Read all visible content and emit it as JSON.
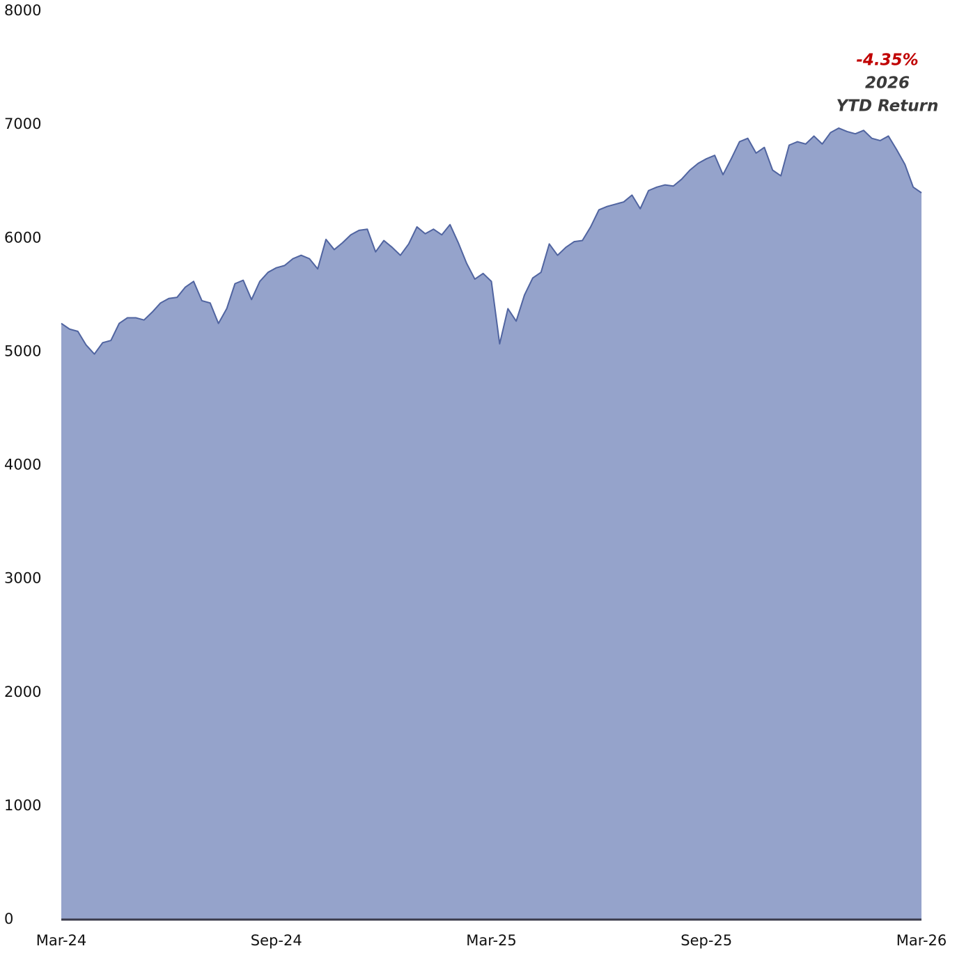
{
  "chart_data": {
    "type": "area",
    "categories": [
      "Mar-24",
      null,
      null,
      null,
      null,
      null,
      null,
      null,
      null,
      null,
      null,
      null,
      null,
      null,
      null,
      null,
      null,
      null,
      null,
      null,
      null,
      null,
      null,
      null,
      null,
      null,
      "Sep-24",
      null,
      null,
      null,
      null,
      null,
      null,
      null,
      null,
      null,
      null,
      null,
      null,
      null,
      null,
      null,
      null,
      null,
      null,
      null,
      null,
      null,
      null,
      null,
      null,
      null,
      "Mar-25",
      null,
      null,
      null,
      null,
      null,
      null,
      null,
      null,
      null,
      null,
      null,
      null,
      null,
      null,
      null,
      null,
      null,
      null,
      null,
      null,
      null,
      null,
      null,
      null,
      null,
      "Sep-25",
      null,
      null,
      null,
      null,
      null,
      null,
      null,
      null,
      null,
      null,
      null,
      null,
      null,
      null,
      null,
      null,
      null,
      null,
      null,
      null,
      null,
      null,
      null,
      null,
      null,
      "Mar-26"
    ],
    "series": [
      {
        "color": "#5064a0",
        "fill": "#95a3cb",
        "values": [
          5250,
          5200,
          5180,
          5060,
          4980,
          5080,
          5100,
          5250,
          5300,
          5300,
          5280,
          5350,
          5430,
          5470,
          5480,
          5570,
          5620,
          5450,
          5430,
          5250,
          5380,
          5600,
          5630,
          5460,
          5620,
          5700,
          5740,
          5760,
          5820,
          5850,
          5820,
          5730,
          5990,
          5900,
          5960,
          6030,
          6070,
          6080,
          5880,
          5980,
          5920,
          5850,
          5950,
          6100,
          6040,
          6080,
          6030,
          6120,
          5960,
          5780,
          5640,
          5690,
          5620,
          5070,
          5380,
          5270,
          5500,
          5650,
          5700,
          5950,
          5850,
          5920,
          5970,
          5980,
          6100,
          6250,
          6280,
          6300,
          6320,
          6380,
          6260,
          6420,
          6450,
          6470,
          6460,
          6520,
          6600,
          6660,
          6700,
          6730,
          6560,
          6700,
          6850,
          6880,
          6750,
          6800,
          6600,
          6550,
          6820,
          6850,
          6830,
          6900,
          6830,
          6930,
          6970,
          6940,
          6920,
          6950,
          6880,
          6860,
          6900,
          6780,
          6650,
          6450,
          6400
        ]
      }
    ],
    "ylim": [
      0,
      8000
    ],
    "yticks": [
      0,
      1000,
      2000,
      3000,
      4000,
      5000,
      6000,
      7000,
      8000
    ],
    "grid": false,
    "annotations": [
      {
        "text": "-4.35%",
        "color": "#c00000"
      },
      {
        "text": "2026",
        "color": "#3a3a3a"
      },
      {
        "text": "YTD Return",
        "color": "#3a3a3a"
      }
    ]
  }
}
